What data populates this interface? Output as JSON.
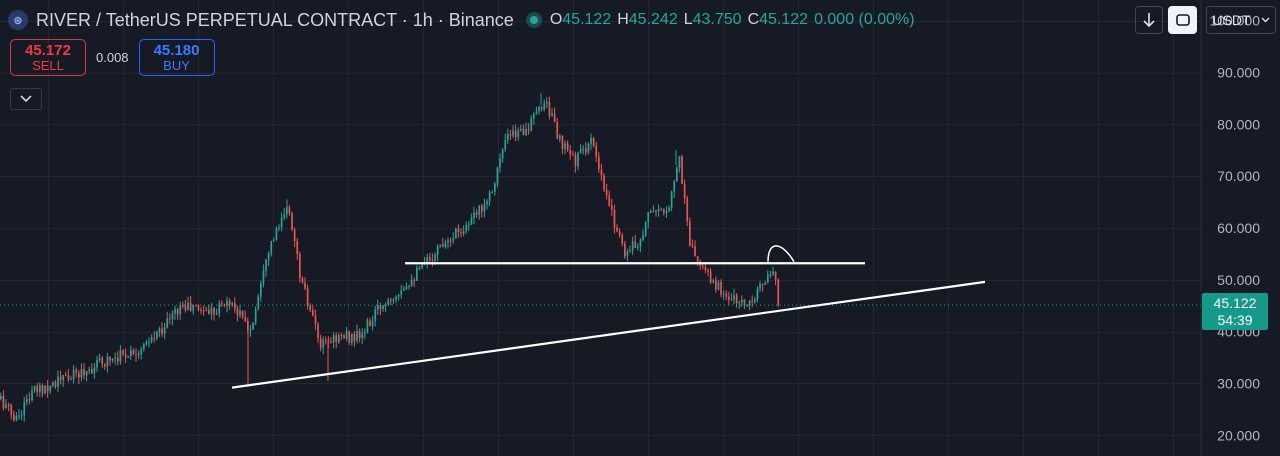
{
  "header": {
    "symbol_icon": "coin-logo-icon",
    "title": "RIVER / TetherUS PERPETUAL CONTRACT · 1h · Binance",
    "ohlc": {
      "o_label": "O",
      "o": "45.122",
      "h_label": "H",
      "h": "45.242",
      "l_label": "L",
      "l": "43.750",
      "c_label": "C",
      "c": "45.122",
      "change": "0.000 (0.00%)"
    }
  },
  "trade": {
    "sell_price": "45.172",
    "sell_label": "SELL",
    "spread": "0.008",
    "buy_price": "45.180",
    "buy_label": "BUY"
  },
  "toolbar": {
    "currency": "USDT"
  },
  "last_price": {
    "price": "45.122",
    "countdown": "54:39"
  },
  "colors": {
    "background": "#161a25",
    "up": "#26a69a",
    "down": "#ef5350",
    "grid": "#232733",
    "price_tag": "#14998a",
    "sell": "#f23645",
    "buy": "#2962ff"
  },
  "chart_data": {
    "type": "candlestick",
    "interval": "1h",
    "ylim": [
      16,
      104
    ],
    "y_ticks": [
      "20.000",
      "30.000",
      "40.000",
      "50.000",
      "60.000",
      "70.000",
      "80.000",
      "90.000",
      "100.000"
    ],
    "last_price": 45.122,
    "price_path": [
      [
        0,
        27
      ],
      [
        15,
        23
      ],
      [
        30,
        28
      ],
      [
        50,
        30
      ],
      [
        80,
        32
      ],
      [
        110,
        35
      ],
      [
        145,
        37
      ],
      [
        180,
        45
      ],
      [
        210,
        44
      ],
      [
        230,
        46
      ],
      [
        250,
        40
      ],
      [
        265,
        55
      ],
      [
        288,
        64
      ],
      [
        300,
        50
      ],
      [
        320,
        37
      ],
      [
        335,
        39
      ],
      [
        360,
        39
      ],
      [
        380,
        45
      ],
      [
        420,
        52
      ],
      [
        445,
        58
      ],
      [
        470,
        61
      ],
      [
        490,
        67
      ],
      [
        505,
        77
      ],
      [
        530,
        80
      ],
      [
        545,
        85
      ],
      [
        560,
        76
      ],
      [
        575,
        73
      ],
      [
        590,
        77
      ],
      [
        605,
        66
      ],
      [
        625,
        55
      ],
      [
        640,
        58
      ],
      [
        650,
        64
      ],
      [
        665,
        62
      ],
      [
        678,
        74
      ],
      [
        690,
        56
      ],
      [
        705,
        51
      ],
      [
        725,
        47
      ],
      [
        745,
        45
      ],
      [
        760,
        49
      ],
      [
        772,
        51
      ],
      [
        780,
        45.1
      ]
    ],
    "wicks": [
      [
        248,
        29.5
      ],
      [
        328,
        30.5
      ],
      [
        541,
        86
      ],
      [
        676,
        75
      ],
      [
        287,
        65.5
      ]
    ],
    "annotations": {
      "support_trendline": [
        [
          232,
          29.2
        ],
        [
          985,
          49.6
        ]
      ],
      "resistance_line": [
        [
          405,
          53.2
        ],
        [
          865,
          53.2
        ]
      ],
      "arc_marker": [
        [
          768,
          53.5
        ],
        [
          794,
          53.5
        ]
      ]
    }
  }
}
